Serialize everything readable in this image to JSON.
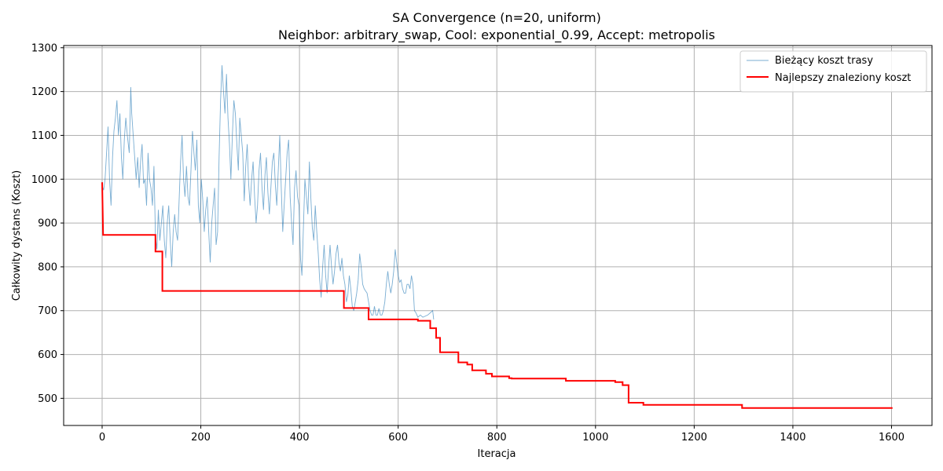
{
  "chart_data": {
    "type": "line",
    "title": "SA Convergence (n=20, uniform)",
    "subtitle": "Neighbor: arbitrary_swap, Cool: exponential_0.99, Accept: metropolis",
    "xlabel": "Iteracja",
    "ylabel": "Całkowity dystans (Koszt)",
    "xlim": [
      -78,
      1682
    ],
    "ylim": [
      438,
      1305
    ],
    "xticks": [
      0,
      200,
      400,
      600,
      800,
      1000,
      1200,
      1400,
      1600
    ],
    "yticks": [
      500,
      600,
      700,
      800,
      900,
      1000,
      1100,
      1200,
      1300
    ],
    "grid": true,
    "legend_position": "top-right",
    "series": [
      {
        "name": "Bieżący koszt trasy",
        "color": "#1f77b4",
        "kind": "thin",
        "points": [
          [
            0,
            985
          ],
          [
            3,
            975
          ],
          [
            6,
            1000
          ],
          [
            9,
            1060
          ],
          [
            12,
            1120
          ],
          [
            15,
            1000
          ],
          [
            18,
            940
          ],
          [
            21,
            1050
          ],
          [
            24,
            1110
          ],
          [
            27,
            1140
          ],
          [
            30,
            1180
          ],
          [
            33,
            1100
          ],
          [
            36,
            1150
          ],
          [
            39,
            1050
          ],
          [
            42,
            1000
          ],
          [
            45,
            1090
          ],
          [
            48,
            1140
          ],
          [
            51,
            1100
          ],
          [
            55,
            1060
          ],
          [
            58,
            1210
          ],
          [
            60,
            1150
          ],
          [
            63,
            1100
          ],
          [
            66,
            1050
          ],
          [
            69,
            1000
          ],
          [
            72,
            1050
          ],
          [
            75,
            980
          ],
          [
            78,
            1040
          ],
          [
            81,
            1080
          ],
          [
            84,
            990
          ],
          [
            87,
            1000
          ],
          [
            90,
            940
          ],
          [
            93,
            1060
          ],
          [
            96,
            1000
          ],
          [
            99,
            980
          ],
          [
            102,
            940
          ],
          [
            105,
            1030
          ],
          [
            108,
            870
          ],
          [
            111,
            840
          ],
          [
            114,
            930
          ],
          [
            117,
            860
          ],
          [
            120,
            900
          ],
          [
            123,
            940
          ],
          [
            126,
            860
          ],
          [
            129,
            820
          ],
          [
            132,
            900
          ],
          [
            135,
            940
          ],
          [
            138,
            860
          ],
          [
            141,
            800
          ],
          [
            144,
            880
          ],
          [
            147,
            920
          ],
          [
            150,
            880
          ],
          [
            153,
            860
          ],
          [
            156,
            950
          ],
          [
            159,
            1040
          ],
          [
            162,
            1100
          ],
          [
            165,
            1000
          ],
          [
            168,
            960
          ],
          [
            171,
            1030
          ],
          [
            174,
            960
          ],
          [
            177,
            940
          ],
          [
            180,
            1020
          ],
          [
            183,
            1110
          ],
          [
            186,
            1060
          ],
          [
            189,
            1020
          ],
          [
            192,
            1090
          ],
          [
            195,
            940
          ],
          [
            198,
            900
          ],
          [
            201,
            1000
          ],
          [
            204,
            950
          ],
          [
            207,
            880
          ],
          [
            210,
            930
          ],
          [
            213,
            960
          ],
          [
            216,
            880
          ],
          [
            219,
            810
          ],
          [
            222,
            900
          ],
          [
            225,
            940
          ],
          [
            228,
            980
          ],
          [
            231,
            850
          ],
          [
            234,
            880
          ],
          [
            237,
            1050
          ],
          [
            240,
            1180
          ],
          [
            243,
            1260
          ],
          [
            246,
            1200
          ],
          [
            249,
            1150
          ],
          [
            252,
            1240
          ],
          [
            255,
            1140
          ],
          [
            258,
            1080
          ],
          [
            261,
            1000
          ],
          [
            264,
            1100
          ],
          [
            267,
            1180
          ],
          [
            270,
            1150
          ],
          [
            273,
            1080
          ],
          [
            276,
            1020
          ],
          [
            279,
            1140
          ],
          [
            282,
            1100
          ],
          [
            285,
            1060
          ],
          [
            288,
            950
          ],
          [
            291,
            1030
          ],
          [
            294,
            1080
          ],
          [
            297,
            990
          ],
          [
            300,
            940
          ],
          [
            303,
            1000
          ],
          [
            306,
            1040
          ],
          [
            309,
            960
          ],
          [
            312,
            900
          ],
          [
            315,
            940
          ],
          [
            318,
            1020
          ],
          [
            321,
            1060
          ],
          [
            324,
            980
          ],
          [
            327,
            930
          ],
          [
            330,
            1010
          ],
          [
            333,
            1050
          ],
          [
            336,
            970
          ],
          [
            339,
            920
          ],
          [
            342,
            980
          ],
          [
            345,
            1040
          ],
          [
            348,
            1060
          ],
          [
            351,
            990
          ],
          [
            354,
            940
          ],
          [
            357,
            1020
          ],
          [
            360,
            1100
          ],
          [
            363,
            980
          ],
          [
            366,
            880
          ],
          [
            369,
            940
          ],
          [
            372,
            1000
          ],
          [
            375,
            1060
          ],
          [
            378,
            1090
          ],
          [
            381,
            960
          ],
          [
            384,
            900
          ],
          [
            387,
            850
          ],
          [
            390,
            980
          ],
          [
            393,
            1020
          ],
          [
            396,
            960
          ],
          [
            399,
            940
          ],
          [
            402,
            820
          ],
          [
            405,
            780
          ],
          [
            408,
            890
          ],
          [
            411,
            1000
          ],
          [
            414,
            960
          ],
          [
            417,
            920
          ],
          [
            420,
            1040
          ],
          [
            423,
            960
          ],
          [
            426,
            890
          ],
          [
            429,
            860
          ],
          [
            432,
            940
          ],
          [
            435,
            880
          ],
          [
            438,
            830
          ],
          [
            441,
            770
          ],
          [
            444,
            730
          ],
          [
            447,
            800
          ],
          [
            450,
            850
          ],
          [
            453,
            780
          ],
          [
            456,
            740
          ],
          [
            459,
            800
          ],
          [
            462,
            850
          ],
          [
            465,
            800
          ],
          [
            468,
            760
          ],
          [
            471,
            790
          ],
          [
            474,
            830
          ],
          [
            477,
            850
          ],
          [
            480,
            810
          ],
          [
            483,
            790
          ],
          [
            486,
            820
          ],
          [
            489,
            780
          ],
          [
            492,
            760
          ],
          [
            495,
            720
          ],
          [
            498,
            735
          ],
          [
            501,
            780
          ],
          [
            504,
            750
          ],
          [
            507,
            710
          ],
          [
            510,
            700
          ],
          [
            513,
            720
          ],
          [
            516,
            740
          ],
          [
            519,
            770
          ],
          [
            522,
            830
          ],
          [
            525,
            800
          ],
          [
            528,
            760
          ],
          [
            531,
            750
          ],
          [
            534,
            745
          ],
          [
            537,
            740
          ],
          [
            540,
            720
          ],
          [
            543,
            700
          ],
          [
            546,
            690
          ],
          [
            549,
            690
          ],
          [
            552,
            710
          ],
          [
            555,
            690
          ],
          [
            558,
            690
          ],
          [
            561,
            705
          ],
          [
            564,
            690
          ],
          [
            567,
            690
          ],
          [
            570,
            700
          ],
          [
            573,
            720
          ],
          [
            576,
            760
          ],
          [
            579,
            790
          ],
          [
            582,
            760
          ],
          [
            585,
            740
          ],
          [
            588,
            760
          ],
          [
            591,
            790
          ],
          [
            594,
            840
          ],
          [
            597,
            810
          ],
          [
            600,
            780
          ],
          [
            603,
            765
          ],
          [
            606,
            770
          ],
          [
            609,
            750
          ],
          [
            612,
            740
          ],
          [
            615,
            740
          ],
          [
            618,
            760
          ],
          [
            621,
            760
          ],
          [
            624,
            750
          ],
          [
            627,
            780
          ],
          [
            630,
            760
          ],
          [
            633,
            700
          ],
          [
            636,
            695
          ],
          [
            640,
            685
          ],
          [
            645,
            690
          ],
          [
            650,
            685
          ],
          [
            660,
            690
          ],
          [
            665,
            695
          ],
          [
            670,
            700
          ],
          [
            672,
            680
          ]
        ]
      },
      {
        "name": "Najlepszy znaleziony koszt",
        "color": "#ff0000",
        "kind": "step",
        "points": [
          [
            0,
            993
          ],
          [
            2,
            873
          ],
          [
            108,
            873
          ],
          [
            108,
            835
          ],
          [
            122,
            835
          ],
          [
            122,
            745
          ],
          [
            490,
            745
          ],
          [
            490,
            706
          ],
          [
            540,
            706
          ],
          [
            540,
            680
          ],
          [
            640,
            680
          ],
          [
            640,
            677
          ],
          [
            665,
            677
          ],
          [
            665,
            660
          ],
          [
            677,
            660
          ],
          [
            677,
            638
          ],
          [
            685,
            638
          ],
          [
            685,
            605
          ],
          [
            722,
            605
          ],
          [
            722,
            582
          ],
          [
            740,
            582
          ],
          [
            740,
            577
          ],
          [
            750,
            577
          ],
          [
            750,
            564
          ],
          [
            778,
            564
          ],
          [
            778,
            556
          ],
          [
            790,
            556
          ],
          [
            790,
            550
          ],
          [
            825,
            550
          ],
          [
            825,
            546
          ],
          [
            830,
            546
          ],
          [
            830,
            545
          ],
          [
            940,
            545
          ],
          [
            940,
            540
          ],
          [
            1040,
            540
          ],
          [
            1040,
            537
          ],
          [
            1055,
            537
          ],
          [
            1055,
            530
          ],
          [
            1067,
            530
          ],
          [
            1067,
            490
          ],
          [
            1097,
            490
          ],
          [
            1097,
            485
          ],
          [
            1297,
            485
          ],
          [
            1297,
            478
          ],
          [
            1602,
            478
          ]
        ]
      }
    ]
  }
}
